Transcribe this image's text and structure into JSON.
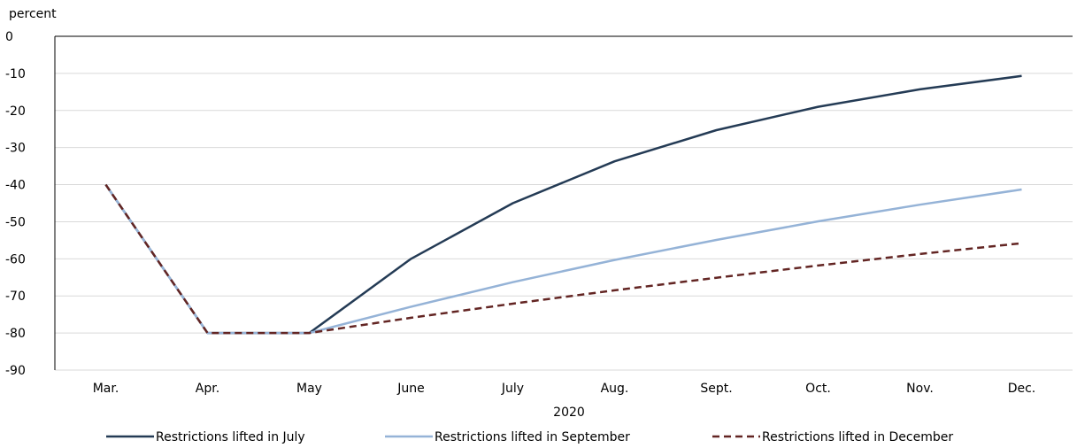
{
  "chart_data": {
    "type": "line",
    "ylabel": "percent",
    "xlabel": "2020",
    "categories": [
      "Mar.",
      "Apr.",
      "May",
      "June",
      "July",
      "Aug.",
      "Sept.",
      "Oct.",
      "Nov.",
      "Dec."
    ],
    "yticks": [
      0,
      -10,
      -20,
      -30,
      -40,
      -50,
      -60,
      -70,
      -80,
      -90
    ],
    "ylim": [
      -90,
      0
    ],
    "grid": true,
    "legend_position": "bottom",
    "series": [
      {
        "name": "Restrictions lifted in July",
        "color": "#243b55",
        "dash": "solid",
        "values": [
          -40,
          -80,
          -80,
          -60,
          -45,
          -33.7,
          -25.3,
          -19,
          -14.3,
          -10.7
        ]
      },
      {
        "name": "Restrictions lifted in September",
        "color": "#95b3d7",
        "dash": "solid",
        "values": [
          -40,
          -80,
          -80,
          -72.9,
          -66.3,
          -60.3,
          -54.9,
          -49.9,
          -45.4,
          -41.3
        ]
      },
      {
        "name": "Restrictions lifted in December",
        "color": "#632523",
        "dash": "dashed",
        "values": [
          -40,
          -80,
          -80,
          -75.9,
          -72.1,
          -68.5,
          -65.1,
          -61.8,
          -58.7,
          -55.8
        ]
      }
    ]
  }
}
